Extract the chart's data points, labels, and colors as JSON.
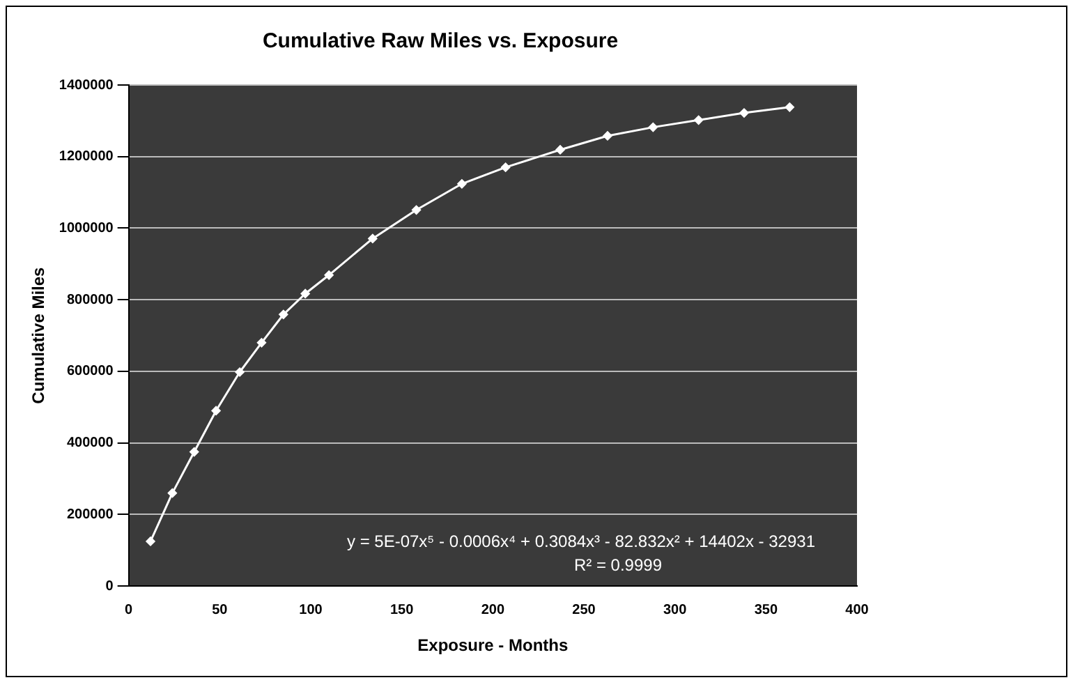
{
  "chart_data": {
    "type": "line",
    "title": "Cumulative Raw Miles vs. Exposure",
    "xlabel": "Exposure - Months",
    "ylabel": "Cumulative Miles",
    "x": [
      12,
      24,
      36,
      48,
      61,
      73,
      85,
      97,
      110,
      134,
      158,
      183,
      207,
      237,
      263,
      288,
      313,
      338,
      363
    ],
    "series": [
      {
        "color": "#ffffff",
        "values": [
          125000,
          260000,
          375000,
          490000,
          598000,
          680000,
          759000,
          817000,
          869000,
          971000,
          1051000,
          1124000,
          1170000,
          1219000,
          1258000,
          1282000,
          1302000,
          1322000,
          1338000
        ]
      }
    ],
    "xlim": [
      0,
      400
    ],
    "xticks": [
      0,
      50,
      100,
      150,
      200,
      250,
      300,
      350,
      400
    ],
    "ylim": [
      0,
      1400000
    ],
    "yticks": [
      0,
      200000,
      400000,
      600000,
      800000,
      1000000,
      1200000,
      1400000
    ],
    "grid": "y",
    "legend": false,
    "marker": "diamond",
    "line_style": "solid",
    "annotations": [
      "y = 5E-07x⁵ - 0.0006x⁴ + 0.3084x³ - 82.832x² + 14402x - 32931",
      "R² = 0.9999"
    ]
  }
}
